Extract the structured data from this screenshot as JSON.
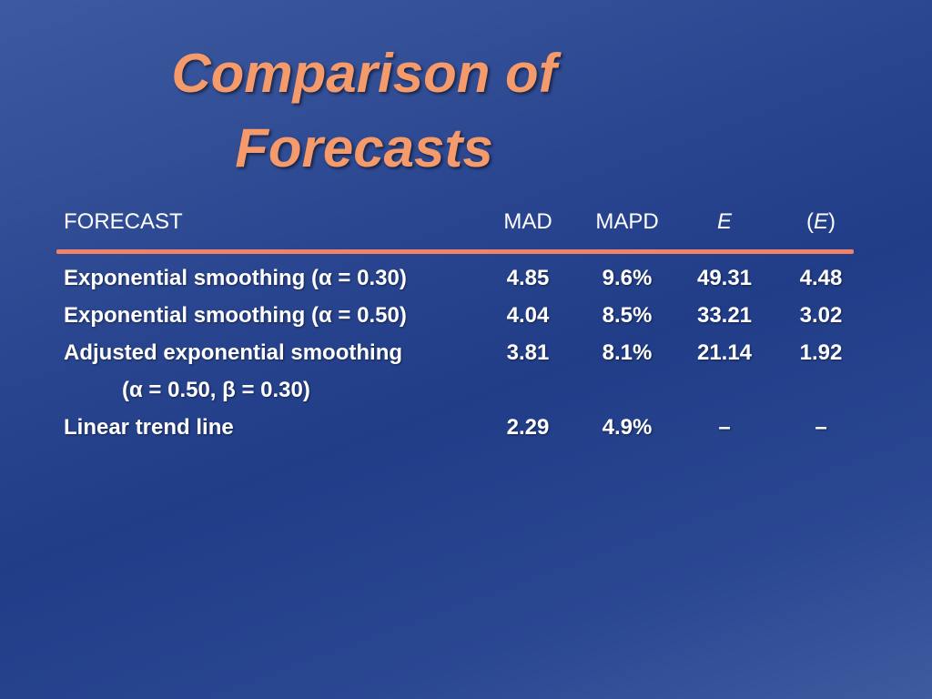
{
  "slide": {
    "title_line1": "Comparison of",
    "title_line2": "Forecasts"
  },
  "table": {
    "headers": {
      "forecast": "FORECAST",
      "mad": "MAD",
      "mapd": "MAPD",
      "e": "E",
      "ae_open": "(",
      "ae_e": "E",
      "ae_close": ")"
    },
    "rows": [
      {
        "name": "Exponential smoothing (α = 0.30)",
        "mad": "4.85",
        "mapd": "9.6%",
        "e": "49.31",
        "ae": "4.48"
      },
      {
        "name": "Exponential smoothing (α = 0.50)",
        "mad": "4.04",
        "mapd": "8.5%",
        "e": "33.21",
        "ae": "3.02"
      },
      {
        "name": "Adjusted exponential smoothing",
        "mad": "3.81",
        "mapd": "8.1%",
        "e": "21.14",
        "ae": "1.92"
      },
      {
        "name": "(α = 0.50, β = 0.30)",
        "mad": "",
        "mapd": "",
        "e": "",
        "ae": ""
      },
      {
        "name": "Linear trend line",
        "mad": "2.29",
        "mapd": "4.9%",
        "e": "–",
        "ae": "–"
      }
    ]
  },
  "colors": {
    "title": "#f59a6a",
    "rule": "#f0826a",
    "text": "#ffffff",
    "background": "#2a4690"
  }
}
